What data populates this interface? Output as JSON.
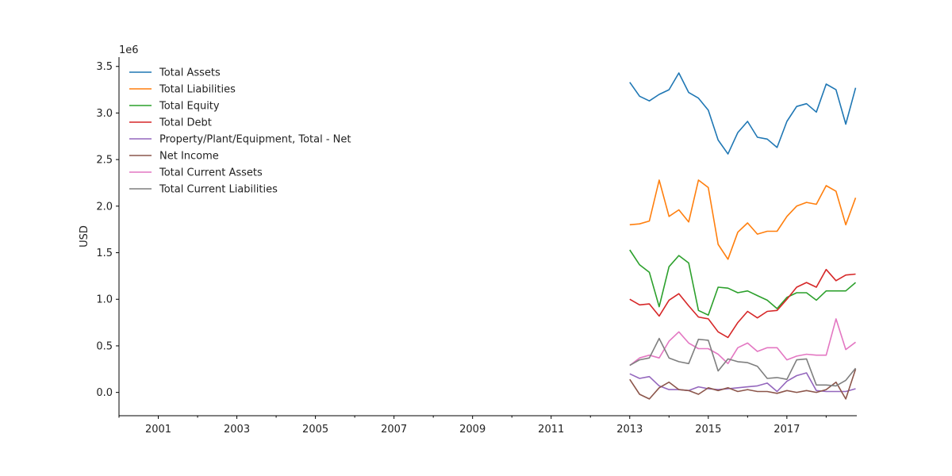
{
  "chart_data": {
    "type": "line",
    "ylabel": "USD",
    "y_offset_label": "1e6",
    "xlim": [
      2000.0,
      2018.78
    ],
    "ylim": [
      -0.25,
      3.6
    ],
    "x_ticks": [
      2001,
      2003,
      2005,
      2007,
      2009,
      2011,
      2013,
      2015,
      2017
    ],
    "y_ticks": [
      0.0,
      0.5,
      1.0,
      1.5,
      2.0,
      2.5,
      3.0,
      3.5
    ],
    "y_tick_labels": [
      "0.0",
      "0.5",
      "1.0",
      "1.5",
      "2.0",
      "2.5",
      "3.0",
      "3.5"
    ],
    "grid": false,
    "legend_position": "top-left",
    "x": [
      2013.0,
      2013.25,
      2013.5,
      2013.75,
      2014.0,
      2014.25,
      2014.5,
      2014.75,
      2015.0,
      2015.25,
      2015.5,
      2015.75,
      2016.0,
      2016.25,
      2016.5,
      2016.75,
      2017.0,
      2017.25,
      2017.5,
      2017.75,
      2018.0,
      2018.25,
      2018.5,
      2018.75
    ],
    "series": [
      {
        "name": "Total Assets",
        "color": "#1f77b4",
        "values": [
          3.33,
          3.18,
          3.13,
          3.2,
          3.25,
          3.43,
          3.22,
          3.16,
          3.03,
          2.71,
          2.56,
          2.79,
          2.91,
          2.74,
          2.72,
          2.63,
          2.91,
          3.07,
          3.1,
          3.01,
          3.31,
          3.25,
          2.88,
          3.27
        ]
      },
      {
        "name": "Total Liabilities",
        "color": "#ff7f0e",
        "values": [
          1.8,
          1.81,
          1.84,
          2.28,
          1.89,
          1.96,
          1.83,
          2.28,
          2.2,
          1.59,
          1.43,
          1.72,
          1.82,
          1.7,
          1.73,
          1.73,
          1.89,
          2.0,
          2.04,
          2.02,
          2.22,
          2.16,
          1.8,
          2.09
        ]
      },
      {
        "name": "Total Equity",
        "color": "#2ca02c",
        "values": [
          1.53,
          1.37,
          1.29,
          0.92,
          1.35,
          1.47,
          1.39,
          0.88,
          0.83,
          1.13,
          1.12,
          1.07,
          1.09,
          1.04,
          0.99,
          0.9,
          1.02,
          1.07,
          1.07,
          0.99,
          1.09,
          1.09,
          1.09,
          1.18
        ]
      },
      {
        "name": "Total Debt",
        "color": "#d62728",
        "values": [
          1.0,
          0.94,
          0.95,
          0.82,
          0.99,
          1.06,
          0.93,
          0.81,
          0.79,
          0.65,
          0.59,
          0.75,
          0.87,
          0.8,
          0.87,
          0.88,
          1.0,
          1.13,
          1.18,
          1.13,
          1.32,
          1.2,
          1.26,
          1.27
        ]
      },
      {
        "name": "Property/Plant/Equipment, Total - Net",
        "color": "#9467bd",
        "values": [
          0.2,
          0.15,
          0.17,
          0.07,
          0.03,
          0.03,
          0.02,
          0.06,
          0.04,
          0.03,
          0.04,
          0.05,
          0.06,
          0.07,
          0.1,
          0.01,
          0.12,
          0.18,
          0.21,
          0.02,
          0.01,
          0.01,
          0.01,
          0.04
        ]
      },
      {
        "name": "Net Income",
        "color": "#8c564b",
        "values": [
          0.14,
          -0.02,
          -0.07,
          0.05,
          0.11,
          0.03,
          0.02,
          -0.02,
          0.05,
          0.02,
          0.05,
          0.01,
          0.03,
          0.01,
          0.01,
          -0.01,
          0.02,
          0.0,
          0.02,
          0.0,
          0.03,
          0.11,
          -0.07,
          0.25
        ]
      },
      {
        "name": "Total Current Assets",
        "color": "#e377c2",
        "values": [
          0.29,
          0.37,
          0.4,
          0.37,
          0.55,
          0.65,
          0.53,
          0.47,
          0.47,
          0.41,
          0.31,
          0.48,
          0.53,
          0.44,
          0.48,
          0.48,
          0.35,
          0.39,
          0.41,
          0.4,
          0.4,
          0.79,
          0.46,
          0.54
        ]
      },
      {
        "name": "Total Current Liabilities",
        "color": "#7f7f7f",
        "values": [
          0.29,
          0.35,
          0.37,
          0.58,
          0.37,
          0.33,
          0.31,
          0.57,
          0.56,
          0.23,
          0.36,
          0.33,
          0.32,
          0.28,
          0.15,
          0.16,
          0.14,
          0.35,
          0.36,
          0.08,
          0.08,
          0.07,
          0.13,
          0.26
        ]
      }
    ]
  }
}
